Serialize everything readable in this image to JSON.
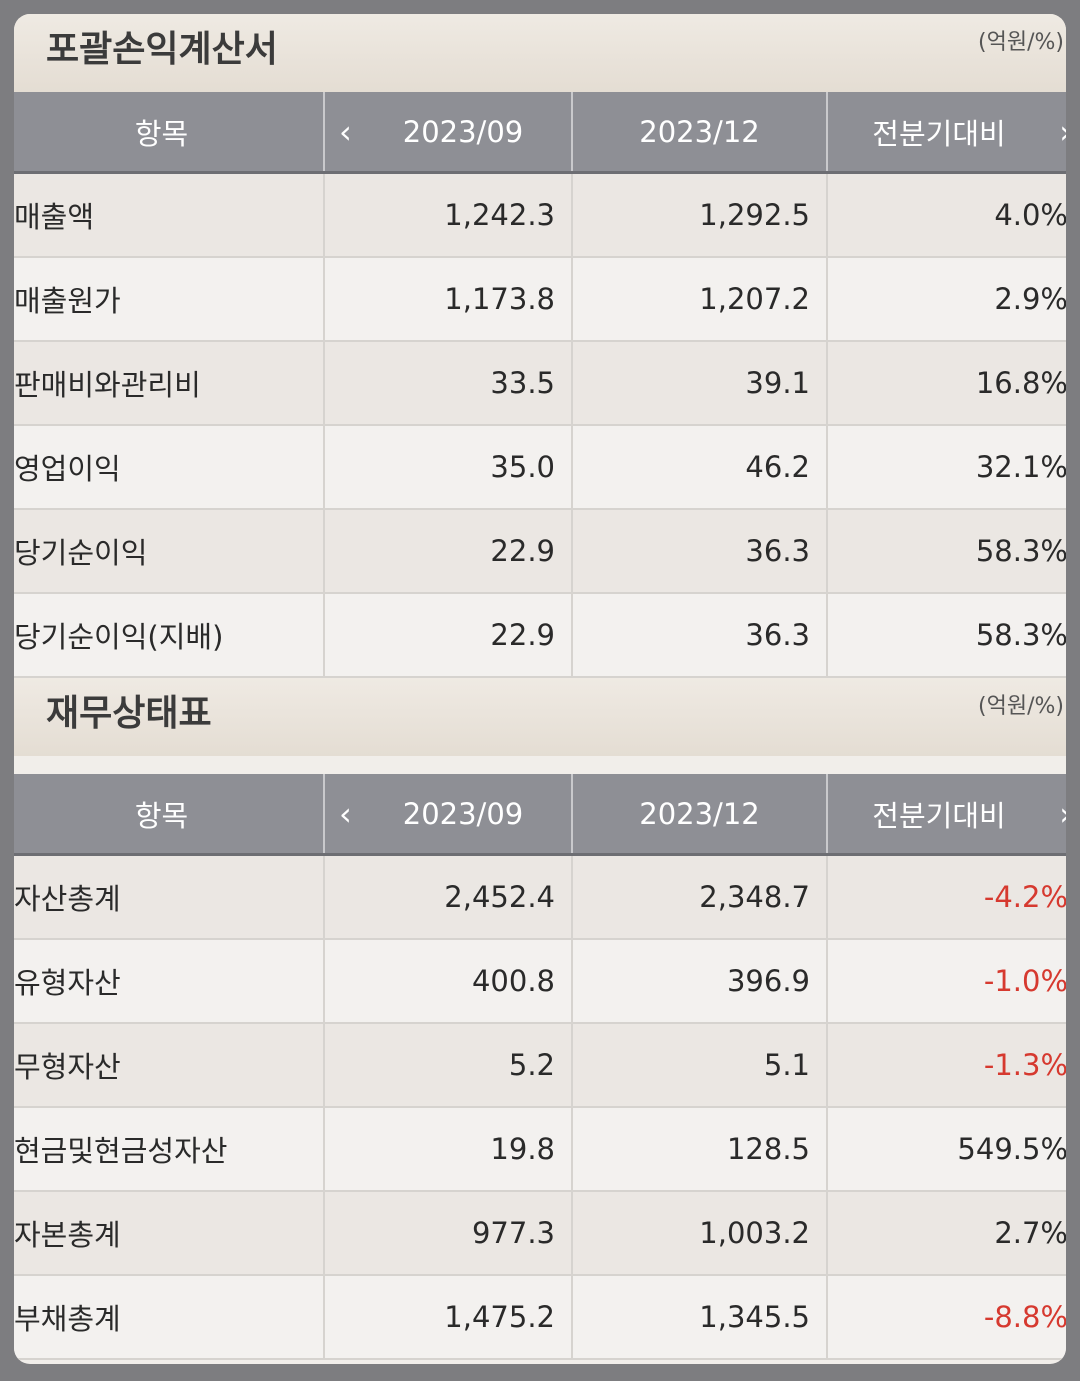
{
  "sections": [
    {
      "title": "포괄손익계산서",
      "unit": "(억원/%)",
      "headers": [
        "항목",
        "2023/09",
        "2023/12",
        "전분기대비"
      ],
      "rows": [
        {
          "label": "매출액",
          "v1": "1,242.3",
          "v2": "1,292.5",
          "chg": "4.0%",
          "neg": false
        },
        {
          "label": "매출원가",
          "v1": "1,173.8",
          "v2": "1,207.2",
          "chg": "2.9%",
          "neg": false
        },
        {
          "label": "판매비와관리비",
          "v1": "33.5",
          "v2": "39.1",
          "chg": "16.8%",
          "neg": false
        },
        {
          "label": "영업이익",
          "v1": "35.0",
          "v2": "46.2",
          "chg": "32.1%",
          "neg": false
        },
        {
          "label": "당기순이익",
          "v1": "22.9",
          "v2": "36.3",
          "chg": "58.3%",
          "neg": false
        },
        {
          "label": "당기순이익(지배)",
          "v1": "22.9",
          "v2": "36.3",
          "chg": "58.3%",
          "neg": false
        }
      ]
    },
    {
      "title": "재무상태표",
      "unit": "(억원/%)",
      "headers": [
        "항목",
        "2023/09",
        "2023/12",
        "전분기대비"
      ],
      "rows": [
        {
          "label": "자산총계",
          "v1": "2,452.4",
          "v2": "2,348.7",
          "chg": "-4.2%",
          "neg": true
        },
        {
          "label": "유형자산",
          "v1": "400.8",
          "v2": "396.9",
          "chg": "-1.0%",
          "neg": true
        },
        {
          "label": "무형자산",
          "v1": "5.2",
          "v2": "5.1",
          "chg": "-1.3%",
          "neg": true
        },
        {
          "label": "현금및현금성자산",
          "v1": "19.8",
          "v2": "128.5",
          "chg": "549.5%",
          "neg": false
        },
        {
          "label": "자본총계",
          "v1": "977.3",
          "v2": "1,003.2",
          "chg": "2.7%",
          "neg": false
        },
        {
          "label": "부채총계",
          "v1": "1,475.2",
          "v2": "1,345.5",
          "chg": "-8.8%",
          "neg": true
        }
      ]
    }
  ],
  "icons": {
    "prev": "chevron-left-icon",
    "next": "chevron-right-icon"
  },
  "colors": {
    "negative": "#d6392f",
    "header_bg": "#8e8f95"
  }
}
